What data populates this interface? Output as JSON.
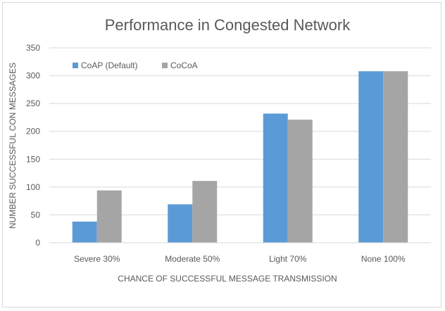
{
  "chart_data": {
    "type": "bar",
    "title": "Performance in Congested Network",
    "xlabel": "CHANCE  OF SUCCESSFUL  MESSAGE  TRANSMISSION",
    "ylabel": "NUMBER SUCCESSFUL CON MESSAGES",
    "categories": [
      "Severe 30%",
      "Moderate 50%",
      "Light 70%",
      "None 100%"
    ],
    "series": [
      {
        "name": "CoAP (Default)",
        "color": "#5b9bd5",
        "values": [
          38,
          69,
          232,
          308
        ]
      },
      {
        "name": "CoCoA",
        "color": "#a5a5a5",
        "values": [
          94,
          111,
          221,
          308
        ]
      }
    ],
    "ylim": [
      0,
      350
    ],
    "yticks": [
      0,
      50,
      100,
      150,
      200,
      250,
      300,
      350
    ],
    "grid": true,
    "legend_position": "top-left"
  }
}
